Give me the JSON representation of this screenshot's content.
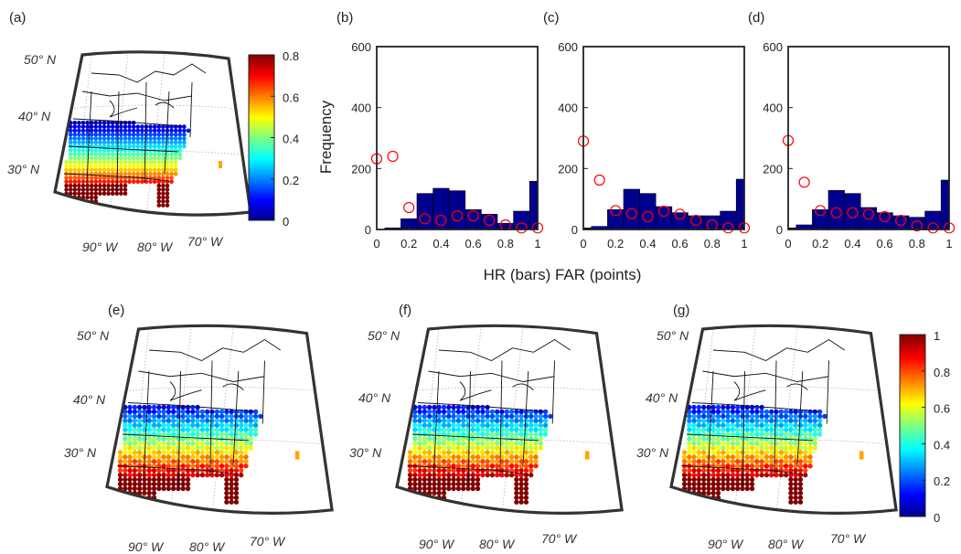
{
  "colors": {
    "bar": "#00008f",
    "far_marker": "#ff0000",
    "map_frame": "#333333",
    "border": "#111111",
    "grid": "#9a9a9a"
  },
  "panels": {
    "a": "(a)",
    "b": "(b)",
    "c": "(c)",
    "d": "(d)",
    "e": "(e)",
    "f": "(f)",
    "g": "(g)"
  },
  "map_labels": {
    "lat": [
      "50° N",
      "40° N",
      "30° N"
    ],
    "lon": [
      "90° W",
      "80° W",
      "70° W"
    ]
  },
  "colorbars": [
    {
      "ticks": [
        "0.8",
        "0.6",
        "0.4",
        "0.2",
        "0"
      ],
      "min": 0,
      "max": 0.8,
      "colormap": "jet"
    },
    {
      "ticks": [
        "1",
        "0.8",
        "0.6",
        "0.4",
        "0.2",
        "0"
      ],
      "min": 0,
      "max": 1,
      "colormap": "jet"
    }
  ],
  "chart_data": [
    {
      "type": "bar",
      "panel": "(b)",
      "bin_edges": [
        0,
        0.1,
        0.2,
        0.3,
        0.4,
        0.5,
        0.6,
        0.7,
        0.8,
        0.9,
        1.0
      ],
      "series": [
        {
          "name": "HR",
          "style": "bars",
          "values": [
            0,
            5,
            35,
            118,
            135,
            127,
            65,
            50,
            20,
            60,
            158
          ]
        },
        {
          "name": "FAR",
          "style": "points",
          "x": [
            0,
            0.1,
            0.2,
            0.3,
            0.4,
            0.5,
            0.6,
            0.7,
            0.8,
            0.9,
            1.0
          ],
          "values": [
            232,
            240,
            72,
            35,
            30,
            45,
            45,
            30,
            15,
            5,
            5
          ]
        }
      ],
      "ylabel": "Frequency",
      "xlim": [
        0,
        1
      ],
      "ylim": [
        0,
        600
      ],
      "xticks": [
        "0",
        "0.2",
        "0.4",
        "0.6",
        "0.8",
        "1"
      ],
      "yticks": [
        "0",
        "200",
        "400",
        "600"
      ]
    },
    {
      "type": "bar",
      "panel": "(c)",
      "bin_edges": [
        0,
        0.1,
        0.2,
        0.3,
        0.4,
        0.5,
        0.6,
        0.7,
        0.8,
        0.9,
        1.0
      ],
      "series": [
        {
          "name": "HR",
          "style": "bars",
          "values": [
            5,
            10,
            65,
            132,
            118,
            75,
            55,
            45,
            45,
            60,
            165
          ]
        },
        {
          "name": "FAR",
          "style": "points",
          "x": [
            0,
            0.1,
            0.2,
            0.3,
            0.4,
            0.5,
            0.6,
            0.7,
            0.8,
            0.9,
            1.0
          ],
          "values": [
            290,
            162,
            62,
            52,
            42,
            60,
            50,
            30,
            15,
            5,
            5
          ]
        }
      ],
      "xlim": [
        0,
        1
      ],
      "ylim": [
        0,
        600
      ],
      "xticks": [
        "0",
        "0.2",
        "0.4",
        "0.6",
        "0.8",
        "1"
      ],
      "yticks": [
        "0",
        "200",
        "400",
        "600"
      ]
    },
    {
      "type": "bar",
      "panel": "(d)",
      "bin_edges": [
        0,
        0.1,
        0.2,
        0.3,
        0.4,
        0.5,
        0.6,
        0.7,
        0.8,
        0.9,
        1.0
      ],
      "series": [
        {
          "name": "HR",
          "style": "bars",
          "values": [
            5,
            15,
            65,
            128,
            118,
            72,
            55,
            45,
            40,
            60,
            162
          ]
        },
        {
          "name": "FAR",
          "style": "points",
          "x": [
            0,
            0.1,
            0.2,
            0.3,
            0.4,
            0.5,
            0.6,
            0.7,
            0.8,
            0.9,
            1.0
          ],
          "values": [
            292,
            155,
            62,
            55,
            55,
            50,
            42,
            30,
            12,
            5,
            5
          ]
        }
      ],
      "xlim": [
        0,
        1
      ],
      "ylim": [
        0,
        600
      ],
      "xticks": [
        "0",
        "0.2",
        "0.4",
        "0.6",
        "0.8",
        "1"
      ],
      "yticks": [
        "0",
        "200",
        "400",
        "600"
      ]
    }
  ],
  "shared_xlabel": "HR (bars) FAR (points)"
}
